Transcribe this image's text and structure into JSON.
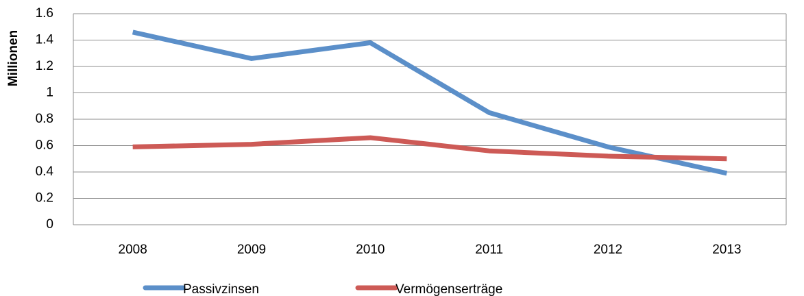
{
  "chart_data": {
    "type": "line",
    "y_label": "Millionen",
    "categories": [
      "2008",
      "2009",
      "2010",
      "2011",
      "2012",
      "2013"
    ],
    "series": [
      {
        "name": "Passivzinsen",
        "color": "#5b8fc9",
        "values": [
          1.46,
          1.26,
          1.38,
          0.85,
          0.59,
          0.39
        ]
      },
      {
        "name": "Vermögenserträge",
        "color": "#cd5a56",
        "values": [
          0.59,
          0.61,
          0.66,
          0.56,
          0.52,
          0.5
        ]
      }
    ],
    "ylim": [
      0,
      1.6
    ],
    "yticks": [
      0,
      0.2,
      0.4,
      0.6,
      0.8,
      1,
      1.2,
      1.4,
      1.6
    ],
    "grid": true,
    "legend": "bottom"
  }
}
